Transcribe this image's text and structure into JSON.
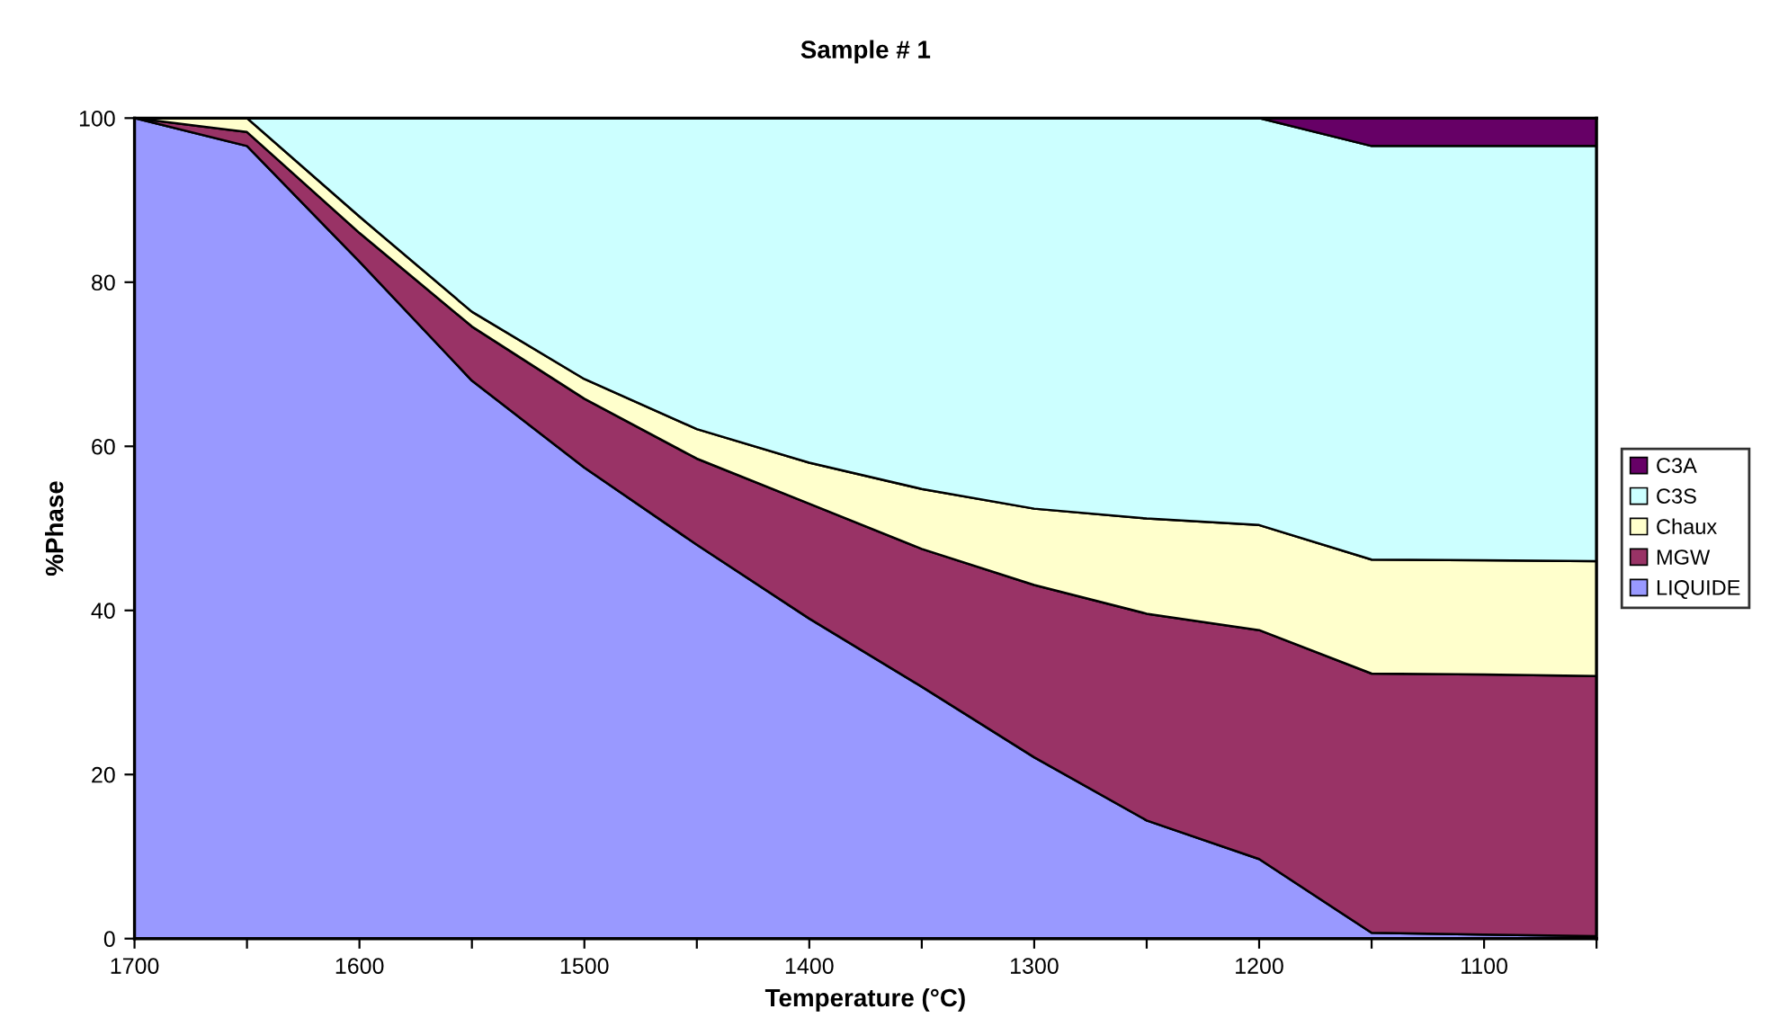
{
  "chart_data": {
    "type": "area",
    "stacked": true,
    "title": "Sample # 1",
    "xlabel": "Temperature (°C)",
    "ylabel": "%Phase",
    "x": [
      1700,
      1650,
      1600,
      1550,
      1500,
      1450,
      1400,
      1350,
      1300,
      1250,
      1200,
      1150,
      1100,
      1050
    ],
    "series": [
      {
        "name": "LIQUIDE",
        "color": "#9999ff",
        "values": [
          100,
          96.6,
          82.5,
          68.0,
          57.4,
          48,
          39,
          30.7,
          22.1,
          14.4,
          9.7,
          0.7,
          0.5,
          0.3
        ]
      },
      {
        "name": "MGW",
        "color": "#993366",
        "values": [
          0,
          1.7,
          3.5,
          6.6,
          8.4,
          10.5,
          14,
          16.8,
          21,
          25.2,
          27.9,
          31.6,
          31.7,
          31.7
        ]
      },
      {
        "name": "Chaux",
        "color": "#ffffcc",
        "values": [
          0,
          1.7,
          2,
          1.8,
          2.4,
          3.6,
          5,
          7.3,
          9.3,
          11.6,
          12.8,
          13.9,
          13.9,
          14.0
        ]
      },
      {
        "name": "C3S",
        "color": "#ccffff",
        "values": [
          0,
          0,
          12,
          23.6,
          31.8,
          37.9,
          42,
          45.2,
          47.6,
          48.8,
          49.6,
          50.4,
          50.5,
          50.6
        ]
      },
      {
        "name": "C3A",
        "color": "#660066",
        "values": [
          0,
          0,
          0,
          0,
          0,
          0,
          0,
          0,
          0,
          0,
          0,
          3.4,
          3.4,
          3.4
        ]
      }
    ],
    "xlim": [
      1700,
      1050
    ],
    "xticks": [
      1700,
      {
        "value": 1650,
        "label": null
      },
      1600,
      {
        "value": 1550,
        "label": null
      },
      1500,
      {
        "value": 1450,
        "label": null
      },
      1400,
      {
        "value": 1350,
        "label": null
      },
      1300,
      {
        "value": 1250,
        "label": null
      },
      1200,
      {
        "value": 1150,
        "label": null
      },
      1100,
      {
        "value": 1050,
        "label": null
      }
    ],
    "ylim": [
      0,
      100
    ],
    "yticks": [
      0,
      20,
      40,
      60,
      80,
      100
    ],
    "grid": false,
    "legend": "right"
  }
}
